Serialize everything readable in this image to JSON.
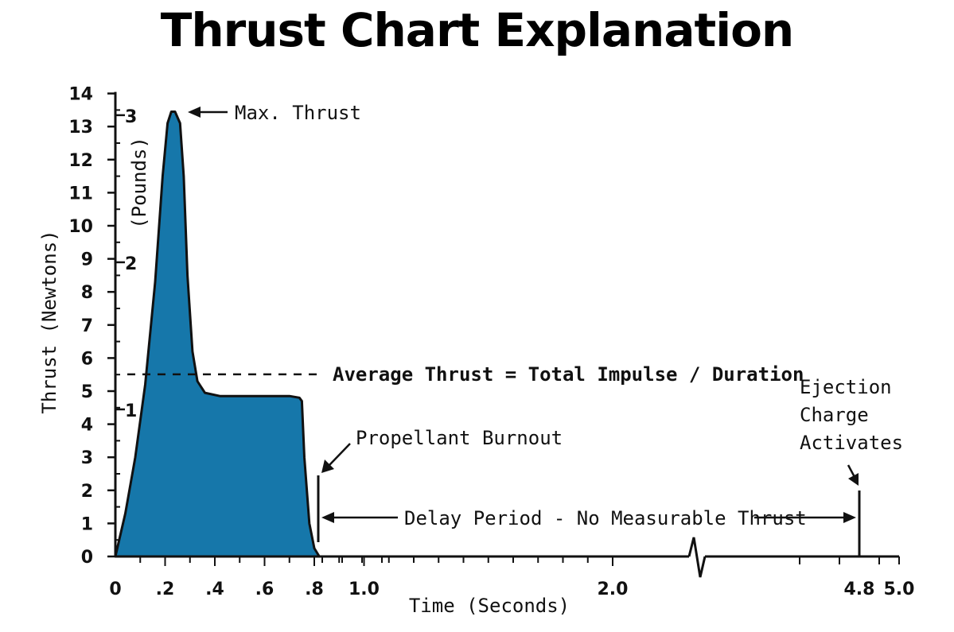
{
  "title": "Thrust Chart Explanation",
  "colors": {
    "fill": "#1677aa",
    "stroke": "#111111"
  },
  "chart_data": {
    "type": "area",
    "title": "Thrust Chart Explanation",
    "xlabel": "Time (Seconds)",
    "ylabel": "Thrust (Newtons)",
    "ylabel_secondary": "(Pounds)",
    "xlim": [
      0,
      5.0
    ],
    "ylim": [
      0,
      14
    ],
    "x_axis_broken": true,
    "grid": false,
    "x_tick_labels": [
      {
        "value": 0,
        "label": "0"
      },
      {
        "value": 0.2,
        "label": ".2"
      },
      {
        "value": 0.4,
        "label": ".4"
      },
      {
        "value": 0.6,
        "label": ".6"
      },
      {
        "value": 0.8,
        "label": ".8"
      },
      {
        "value": 1.0,
        "label": "1.0"
      },
      {
        "value": 2.0,
        "label": "2.0"
      },
      {
        "value": 4.8,
        "label": "4.8"
      },
      {
        "value": 5.0,
        "label": "5.0"
      }
    ],
    "y_tick_labels": [
      "0",
      "1",
      "2",
      "3",
      "4",
      "5",
      "6",
      "7",
      "8",
      "9",
      "10",
      "11",
      "12",
      "13",
      "14"
    ],
    "y_secondary_ticks": [
      {
        "value": 1,
        "label": "1"
      },
      {
        "value": 2,
        "label": "2"
      },
      {
        "value": 3,
        "label": "3"
      }
    ],
    "series": [
      {
        "x": [
          0,
          0.04,
          0.08,
          0.12,
          0.16,
          0.19,
          0.21,
          0.225,
          0.24,
          0.26,
          0.275,
          0.29,
          0.31,
          0.33,
          0.36,
          0.42,
          0.55,
          0.7,
          0.74,
          0.75,
          0.76,
          0.78,
          0.8,
          0.82
        ],
        "y": [
          0,
          1.3,
          3.0,
          5.2,
          8.3,
          11.5,
          13.1,
          13.45,
          13.45,
          13.1,
          11.5,
          8.5,
          6.2,
          5.3,
          4.95,
          4.85,
          4.85,
          4.85,
          4.8,
          4.7,
          3.0,
          1.0,
          0.25,
          0
        ]
      }
    ],
    "average_thrust": 5.7,
    "annotations": {
      "max_thrust": "Max. Thrust",
      "average": "Average Thrust = Total Impulse / Duration",
      "burnout": "Propellant Burnout",
      "delay": "Delay Period - No Measurable Thrust",
      "ejection_line1": "Ejection",
      "ejection_line2": "Charge",
      "ejection_line3": "Activates"
    }
  }
}
